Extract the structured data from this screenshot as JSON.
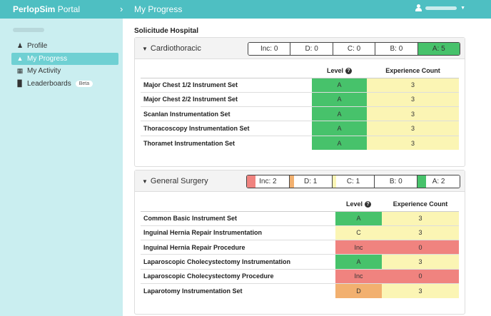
{
  "app": {
    "brand_bold": "PerlopSim",
    "brand_rest": " Portal",
    "page_title": "My Progress"
  },
  "sidebar": {
    "items": [
      {
        "label": "Profile",
        "icon": "user-icon"
      },
      {
        "label": "My Progress",
        "icon": "graduation-cap-icon"
      },
      {
        "label": "My Activity",
        "icon": "calendar-icon"
      },
      {
        "label": "Leaderboards",
        "icon": "bar-chart-icon",
        "badge": "Beta"
      }
    ]
  },
  "hospital": "Solicitude Hospital",
  "colors": {
    "A": "#47c26b",
    "B": "#ffffff",
    "C": "#fbf5b4",
    "D": "#f2b06f",
    "Inc": "#f0837f",
    "count": "#fbf5b4"
  },
  "headers": {
    "level": "Level",
    "count": "Experience Count"
  },
  "sections": [
    {
      "title": "Cardiothoracic",
      "summary": [
        {
          "label": "Inc: 0",
          "key": "Inc",
          "fill": 0
        },
        {
          "label": "D: 0",
          "key": "D",
          "fill": 0
        },
        {
          "label": "C: 0",
          "key": "C",
          "fill": 0
        },
        {
          "label": "B: 0",
          "key": "B",
          "fill": 0
        },
        {
          "label": "A: 5",
          "key": "A",
          "fill": 1
        }
      ],
      "rows": [
        {
          "name": "Major Chest 1/2 Instrument Set",
          "level": "A",
          "count": "3"
        },
        {
          "name": "Major Chest 2/2 Instrument Set",
          "level": "A",
          "count": "3"
        },
        {
          "name": "Scanlan Instrumentation Set",
          "level": "A",
          "count": "3"
        },
        {
          "name": "Thoracoscopy Instrumentation Set",
          "level": "A",
          "count": "3"
        },
        {
          "name": "Thoramet Instrumentation Set",
          "level": "A",
          "count": "3"
        }
      ]
    },
    {
      "title": "General Surgery",
      "summary": [
        {
          "label": "Inc: 2",
          "key": "Inc",
          "fill": 0.2
        },
        {
          "label": "D: 1",
          "key": "D",
          "fill": 0.1
        },
        {
          "label": "C: 1",
          "key": "C",
          "fill": 0.1
        },
        {
          "label": "B: 0",
          "key": "B",
          "fill": 0
        },
        {
          "label": "A: 2",
          "key": "A",
          "fill": 0.2
        }
      ],
      "rows": [
        {
          "name": "Common Basic Instrument Set",
          "level": "A",
          "count": "3"
        },
        {
          "name": "Inguinal Hernia Repair Instrumentation",
          "level": "C",
          "count": "3"
        },
        {
          "name": "Inguinal Hernia Repair Procedure",
          "level": "Inc",
          "count": "0"
        },
        {
          "name": "Laparoscopic Cholecystectomy Instrumentation",
          "level": "A",
          "count": "3"
        },
        {
          "name": "Laparoscopic Cholecystectomy Procedure",
          "level": "Inc",
          "count": "0"
        },
        {
          "name": "Laparotomy Instrumentation Set",
          "level": "D",
          "count": "3"
        }
      ]
    }
  ]
}
